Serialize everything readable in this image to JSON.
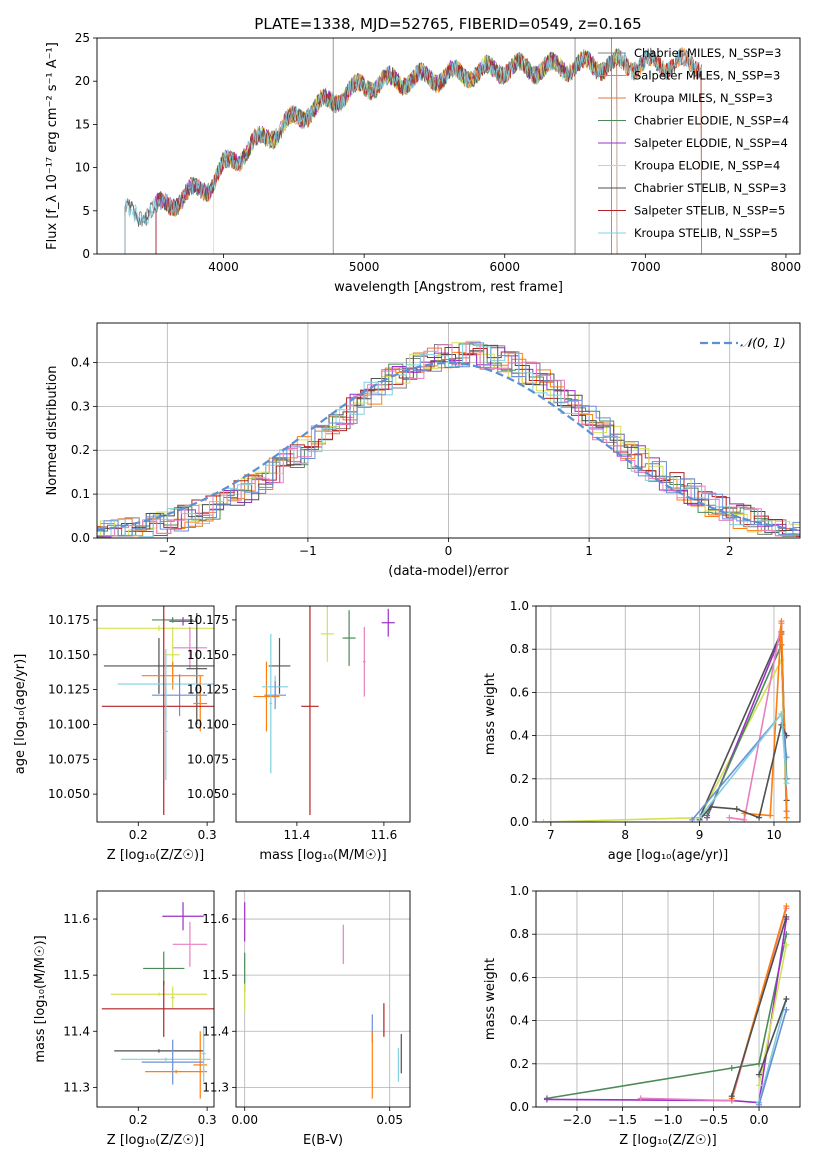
{
  "figure_title": "PLATE=1338, MJD=52765, FIBERID=0549, z=0.165",
  "colors": {
    "Chabrier MILES": "#7f7f7f",
    "Salpeter MILES": "#ff7f0e",
    "Kroupa MILES": "#e07b39",
    "Chabrier ELODIE": "#4c8a5a",
    "Salpeter ELODIE": "#9b30c8",
    "Kroupa ELODIE": "#d4e157",
    "Chabrier STELIB": "#505050",
    "Salpeter STELIB": "#b22222",
    "Kroupa STELIB": "#80d0e0",
    "extra_pink": "#e87fc0",
    "extra_blue": "#6a8fd8",
    "gaussian": "#5b8fd6"
  },
  "chart_data": [
    {
      "id": "spectrum",
      "type": "line",
      "xlabel": "wavelength [Angstrom, rest frame]",
      "ylabel": "Flux [f_λ 10⁻¹⁷ erg cm⁻² s⁻¹ A⁻¹]",
      "xlim": [
        3100,
        8100
      ],
      "ylim": [
        0,
        25
      ],
      "xticks": [
        4000,
        5000,
        6000,
        7000,
        8000
      ],
      "yticks": [
        0,
        5,
        10,
        15,
        20,
        25
      ],
      "grid": false,
      "legend": "right",
      "legend_entries": [
        "Chabrier MILES, N_SSP=3",
        "Salpeter MILES, N_SSP=3",
        "Kroupa MILES, N_SSP=3",
        "Chabrier ELODIE, N_SSP=4",
        "Salpeter ELODIE, N_SSP=4",
        "Kroupa ELODIE, N_SSP=4",
        "Chabrier STELIB, N_SSP=3",
        "Salpeter STELIB, N_SSP=5",
        "Kroupa STELIB, N_SSP=5"
      ],
      "continuum": [
        [
          3300,
          4.5
        ],
        [
          3500,
          5
        ],
        [
          3700,
          6.5
        ],
        [
          3900,
          8
        ],
        [
          4000,
          10
        ],
        [
          4200,
          12.5
        ],
        [
          4400,
          14.5
        ],
        [
          4600,
          16.5
        ],
        [
          4800,
          18
        ],
        [
          5000,
          19.5
        ],
        [
          5200,
          20
        ],
        [
          5500,
          20.5
        ],
        [
          5800,
          21
        ],
        [
          6000,
          21.5
        ],
        [
          6300,
          21.5
        ],
        [
          6500,
          21.8
        ],
        [
          7000,
          22
        ],
        [
          7400,
          22
        ]
      ]
    },
    {
      "id": "residuals",
      "type": "histogram",
      "xlabel": "(data-model)/error",
      "ylabel": "Normed distribution",
      "xlim": [
        -2.5,
        2.5
      ],
      "ylim": [
        0,
        0.49
      ],
      "xticks": [
        -2,
        -1,
        0,
        1,
        2
      ],
      "yticks": [
        0.0,
        0.1,
        0.2,
        0.3,
        0.4
      ],
      "grid": true,
      "legend": "top-right",
      "legend_label": "𝒩(0, 1)",
      "sigma": 1
    },
    {
      "id": "age_vs_Z",
      "type": "errorbar",
      "xlabel": "Z [log₁₀(Z/Z☉)]",
      "ylabel": "age  [log₁₀(age/yr)]",
      "xlim": [
        0.14,
        0.31
      ],
      "ylim": [
        10.03,
        10.185
      ],
      "xticks": [
        0.2,
        0.3
      ],
      "yticks": [
        10.05,
        10.075,
        10.1,
        10.125,
        10.15,
        10.175
      ],
      "points": [
        {
          "x": 0.265,
          "y": 10.174,
          "xerr": 0.02,
          "yerr": 0.003,
          "c": "Salpeter ELODIE"
        },
        {
          "x": 0.25,
          "y": 10.175,
          "xerr": 0.03,
          "yerr": 0.002,
          "c": "Chabrier ELODIE"
        },
        {
          "x": 0.23,
          "y": 10.169,
          "xerr": 0.09,
          "yerr": 0.002,
          "c": "Kroupa ELODIE"
        },
        {
          "x": 0.275,
          "y": 10.155,
          "xerr": 0.025,
          "yerr": 0.015,
          "c": "extra_pink"
        },
        {
          "x": 0.25,
          "y": 10.15,
          "xerr": 0.01,
          "yerr": 0.02,
          "c": "Kroupa ELODIE"
        },
        {
          "x": 0.23,
          "y": 10.142,
          "xerr": 0.08,
          "yerr": 0.02,
          "c": "Chabrier STELIB"
        },
        {
          "x": 0.285,
          "y": 10.14,
          "xerr": 0.015,
          "yerr": 0.04,
          "c": "Chabrier STELIB"
        },
        {
          "x": 0.25,
          "y": 10.135,
          "xerr": 0.045,
          "yerr": 0.01,
          "c": "Salpeter MILES"
        },
        {
          "x": 0.24,
          "y": 10.129,
          "xerr": 0.07,
          "yerr": 0.025,
          "c": "Kroupa STELIB"
        },
        {
          "x": 0.26,
          "y": 10.121,
          "xerr": 0.04,
          "yerr": 0.015,
          "c": "extra_blue"
        },
        {
          "x": 0.29,
          "y": 10.115,
          "xerr": 0.01,
          "yerr": 0.02,
          "c": "Salpeter MILES"
        },
        {
          "x": 0.237,
          "y": 10.113,
          "xerr": 0.09,
          "yerr": 0.078,
          "c": "Salpeter STELIB"
        },
        {
          "x": 0.24,
          "y": 10.095,
          "xerr": 0.003,
          "yerr": 0.035,
          "c": "Kroupa STELIB"
        }
      ]
    },
    {
      "id": "age_vs_mass",
      "type": "errorbar",
      "xlabel": "mass [log₁₀(M/M☉)]",
      "ylabel": "",
      "xlim": [
        11.26,
        11.66
      ],
      "ylim": [
        10.03,
        10.185
      ],
      "xticks": [
        11.4,
        11.6
      ],
      "yticks": [
        10.05,
        10.075,
        10.1,
        10.125,
        10.15,
        10.175
      ],
      "points": [
        {
          "x": 11.61,
          "y": 10.173,
          "xerr": 0.015,
          "yerr": 0.01,
          "c": "Salpeter ELODIE"
        },
        {
          "x": 11.52,
          "y": 10.162,
          "xerr": 0.015,
          "yerr": 0.02,
          "c": "Chabrier ELODIE"
        },
        {
          "x": 11.47,
          "y": 10.165,
          "xerr": 0.015,
          "yerr": 0.02,
          "c": "Kroupa ELODIE"
        },
        {
          "x": 11.555,
          "y": 10.145,
          "xerr": 0.003,
          "yerr": 0.025,
          "c": "extra_pink"
        },
        {
          "x": 11.36,
          "y": 10.142,
          "xerr": 0.025,
          "yerr": 0.02,
          "c": "Chabrier STELIB"
        },
        {
          "x": 11.33,
          "y": 10.12,
          "xerr": 0.03,
          "yerr": 0.025,
          "c": "Salpeter MILES"
        },
        {
          "x": 11.35,
          "y": 10.127,
          "xerr": 0.03,
          "yerr": 0.008,
          "c": "Kroupa STELIB"
        },
        {
          "x": 11.35,
          "y": 10.121,
          "xerr": 0.025,
          "yerr": 0.01,
          "c": "extra_blue"
        },
        {
          "x": 11.43,
          "y": 10.113,
          "xerr": 0.02,
          "yerr": 0.078,
          "c": "Salpeter STELIB"
        },
        {
          "x": 11.34,
          "y": 10.115,
          "xerr": 0.003,
          "yerr": 0.05,
          "c": "Kroupa STELIB"
        }
      ]
    },
    {
      "id": "weight_vs_age",
      "type": "line",
      "xlabel": "age  [log₁₀(age/yr)]",
      "ylabel": "mass weight",
      "xlim": [
        6.8,
        10.35
      ],
      "ylim": [
        0,
        1
      ],
      "xticks": [
        7,
        8,
        9,
        10
      ],
      "yticks": [
        0.0,
        0.2,
        0.4,
        0.6,
        0.8,
        1.0
      ],
      "grid": true,
      "series": [
        {
          "c": "Kroupa ELODIE",
          "points": [
            [
              6.9,
              0.0
            ],
            [
              9.0,
              0.02
            ],
            [
              10.1,
              0.75
            ],
            [
              10.17,
              0.02
            ]
          ]
        },
        {
          "c": "Chabrier STELIB",
          "points": [
            [
              9.0,
              0.02
            ],
            [
              10.1,
              0.88
            ],
            [
              10.17,
              0.1
            ]
          ]
        },
        {
          "c": "Salpeter ELODIE",
          "points": [
            [
              9.1,
              0.02
            ],
            [
              10.1,
              0.87
            ],
            [
              10.17,
              0.05
            ]
          ]
        },
        {
          "c": "Chabrier ELODIE",
          "points": [
            [
              9.1,
              0.03
            ],
            [
              10.1,
              0.82
            ],
            [
              10.17,
              0.2
            ]
          ]
        },
        {
          "c": "extra_pink",
          "points": [
            [
              9.4,
              0.02
            ],
            [
              9.6,
              0.01
            ],
            [
              10.1,
              0.92
            ],
            [
              10.17,
              0.05
            ]
          ]
        },
        {
          "c": "Salpeter MILES",
          "points": [
            [
              9.6,
              0.04
            ],
            [
              9.95,
              0.03
            ],
            [
              10.1,
              0.93
            ],
            [
              10.17,
              0.02
            ]
          ]
        },
        {
          "c": "Chabrier STELIB",
          "points": [
            [
              9.0,
              0.01
            ],
            [
              9.15,
              0.07
            ],
            [
              9.5,
              0.06
            ],
            [
              9.8,
              0.02
            ],
            [
              10.1,
              0.45
            ],
            [
              10.17,
              0.4
            ]
          ]
        },
        {
          "c": "extra_blue",
          "points": [
            [
              8.9,
              0.01
            ],
            [
              10.1,
              0.5
            ],
            [
              10.17,
              0.3
            ]
          ]
        },
        {
          "c": "Kroupa STELIB",
          "points": [
            [
              9.0,
              0.02
            ],
            [
              10.1,
              0.5
            ],
            [
              10.17,
              0.18
            ]
          ]
        }
      ]
    },
    {
      "id": "mass_vs_Z",
      "type": "errorbar",
      "xlabel": "Z [log₁₀(Z/Z☉)]",
      "ylabel": "mass [log₁₀(M/M☉)]",
      "xlim": [
        0.14,
        0.31
      ],
      "ylim": [
        11.265,
        11.65
      ],
      "xticks": [
        0.2,
        0.3
      ],
      "yticks": [
        11.3,
        11.4,
        11.5,
        11.6
      ],
      "points": [
        {
          "x": 0.265,
          "y": 11.605,
          "xerr": 0.03,
          "yerr": 0.025,
          "c": "Salpeter ELODIE"
        },
        {
          "x": 0.275,
          "y": 11.555,
          "xerr": 0.025,
          "yerr": 0.04,
          "c": "extra_pink"
        },
        {
          "x": 0.237,
          "y": 11.512,
          "xerr": 0.03,
          "yerr": 0.03,
          "c": "Chabrier ELODIE"
        },
        {
          "x": 0.23,
          "y": 11.466,
          "xerr": 0.07,
          "yerr": 0.003,
          "c": "Kroupa ELODIE"
        },
        {
          "x": 0.25,
          "y": 11.46,
          "xerr": 0.003,
          "yerr": 0.02,
          "c": "Kroupa ELODIE"
        },
        {
          "x": 0.237,
          "y": 11.44,
          "xerr": 0.09,
          "yerr": 0.05,
          "c": "Salpeter STELIB"
        },
        {
          "x": 0.29,
          "y": 11.34,
          "xerr": 0.01,
          "yerr": 0.06,
          "c": "Salpeter MILES"
        },
        {
          "x": 0.23,
          "y": 11.365,
          "xerr": 0.065,
          "yerr": 0.003,
          "c": "Chabrier STELIB"
        },
        {
          "x": 0.24,
          "y": 11.35,
          "xerr": 0.065,
          "yerr": 0.003,
          "c": "Kroupa STELIB"
        },
        {
          "x": 0.25,
          "y": 11.345,
          "xerr": 0.045,
          "yerr": 0.04,
          "c": "extra_blue"
        },
        {
          "x": 0.255,
          "y": 11.328,
          "xerr": 0.045,
          "yerr": 0.003,
          "c": "Salpeter MILES"
        },
        {
          "x": 0.295,
          "y": 11.36,
          "xerr": 0.003,
          "yerr": 0.05,
          "c": "Kroupa STELIB"
        }
      ]
    },
    {
      "id": "mass_vs_EBV",
      "type": "errorbar",
      "xlabel": "E(B-V)",
      "ylabel": "",
      "xlim": [
        -0.003,
        0.057
      ],
      "ylim": [
        11.265,
        11.65
      ],
      "xticks": [
        0.0,
        0.05
      ],
      "yticks": [
        11.3,
        11.4,
        11.5,
        11.6
      ],
      "grid": true,
      "points": [
        {
          "x": 0.0,
          "y": 11.595,
          "xerr": 0,
          "yerr": 0.035,
          "c": "Salpeter ELODIE"
        },
        {
          "x": 0.0,
          "y": 11.505,
          "xerr": 0,
          "yerr": 0.035,
          "c": "Chabrier ELODIE"
        },
        {
          "x": 0.0,
          "y": 11.46,
          "xerr": 0,
          "yerr": 0.025,
          "c": "Kroupa ELODIE"
        },
        {
          "x": 0.034,
          "y": 11.555,
          "xerr": 0,
          "yerr": 0.035,
          "c": "extra_pink"
        },
        {
          "x": 0.044,
          "y": 11.405,
          "xerr": 0,
          "yerr": 0.025,
          "c": "extra_blue"
        },
        {
          "x": 0.044,
          "y": 11.34,
          "xerr": 0,
          "yerr": 0.06,
          "c": "Salpeter MILES"
        },
        {
          "x": 0.048,
          "y": 11.42,
          "xerr": 0,
          "yerr": 0.03,
          "c": "Salpeter STELIB"
        },
        {
          "x": 0.054,
          "y": 11.36,
          "xerr": 0,
          "yerr": 0.035,
          "c": "Chabrier STELIB"
        },
        {
          "x": 0.053,
          "y": 11.34,
          "xerr": 0,
          "yerr": 0.03,
          "c": "Kroupa STELIB"
        }
      ]
    },
    {
      "id": "weight_vs_Z",
      "type": "line",
      "xlabel": "Z [log₁₀(Z/Z☉)]",
      "ylabel": "mass weight",
      "xlim": [
        -2.45,
        0.45
      ],
      "ylim": [
        0,
        1
      ],
      "xticks": [
        -2.0,
        -1.5,
        -1.0,
        -0.5,
        0.0
      ],
      "yticks": [
        0.0,
        0.2,
        0.4,
        0.6,
        0.8,
        1.0
      ],
      "grid": true,
      "series": [
        {
          "c": "Chabrier ELODIE",
          "points": [
            [
              -2.33,
              0.04
            ],
            [
              -0.3,
              0.18
            ],
            [
              0.0,
              0.2
            ],
            [
              0.3,
              0.8
            ]
          ]
        },
        {
          "c": "Salpeter ELODIE",
          "points": [
            [
              -2.33,
              0.035
            ],
            [
              -0.3,
              0.03
            ],
            [
              0.0,
              0.02
            ],
            [
              0.3,
              0.87
            ]
          ]
        },
        {
          "c": "extra_pink",
          "points": [
            [
              -1.3,
              0.04
            ],
            [
              -0.3,
              0.03
            ],
            [
              0.3,
              0.92
            ]
          ]
        },
        {
          "c": "Salpeter MILES",
          "points": [
            [
              -0.3,
              0.04
            ],
            [
              0.3,
              0.93
            ]
          ]
        },
        {
          "c": "Chabrier STELIB",
          "points": [
            [
              -0.3,
              0.05
            ],
            [
              0.3,
              0.88
            ]
          ]
        },
        {
          "c": "Kroupa ELODIE",
          "points": [
            [
              0.0,
              0.1
            ],
            [
              0.3,
              0.75
            ]
          ]
        },
        {
          "c": "Kroupa STELIB",
          "points": [
            [
              0.0,
              0.02
            ],
            [
              0.3,
              0.5
            ]
          ]
        },
        {
          "c": "extra_blue",
          "points": [
            [
              0.0,
              0.01
            ],
            [
              0.3,
              0.45
            ]
          ]
        },
        {
          "c": "Chabrier STELIB",
          "points": [
            [
              0.0,
              0.15
            ],
            [
              0.3,
              0.5
            ]
          ]
        }
      ]
    }
  ]
}
